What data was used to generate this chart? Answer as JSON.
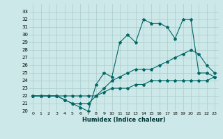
{
  "xlabel": "Humidex (Indice chaleur)",
  "bg_color": "#cce8e8",
  "grid_color": "#aacccc",
  "line_color": "#006666",
  "xlim": [
    0,
    23
  ],
  "ylim": [
    20,
    34
  ],
  "xticks": [
    0,
    1,
    2,
    3,
    4,
    5,
    6,
    7,
    8,
    9,
    10,
    11,
    12,
    13,
    14,
    15,
    16,
    17,
    18,
    19,
    20,
    21,
    22,
    23
  ],
  "yticks": [
    20,
    21,
    22,
    23,
    24,
    25,
    26,
    27,
    28,
    29,
    30,
    31,
    32,
    33
  ],
  "series": [
    {
      "x": [
        0,
        1,
        2,
        3,
        4,
        5,
        6,
        7,
        8,
        9,
        10,
        11,
        12,
        13,
        14,
        15,
        16,
        17,
        18,
        19,
        20,
        21,
        22,
        23
      ],
      "y": [
        22,
        22,
        22,
        22,
        22,
        22,
        22,
        22,
        22,
        22.5,
        23,
        23,
        23,
        23.5,
        23.5,
        24,
        24,
        24,
        24,
        24,
        24,
        24,
        24,
        24.5
      ]
    },
    {
      "x": [
        0,
        1,
        2,
        3,
        4,
        5,
        6,
        7,
        8,
        9,
        10,
        11,
        12,
        13,
        14,
        15,
        16,
        17,
        18,
        19,
        20,
        21,
        22,
        23
      ],
      "y": [
        22,
        22,
        22,
        22,
        21.5,
        21,
        21,
        21,
        22,
        23,
        24,
        24.5,
        25,
        25.5,
        25.5,
        25.5,
        26,
        26.5,
        27,
        27.5,
        28,
        27.5,
        26,
        25
      ]
    },
    {
      "x": [
        0,
        1,
        2,
        3,
        4,
        5,
        6,
        7,
        8,
        9,
        10,
        11,
        12,
        13,
        14,
        15,
        16,
        17,
        18,
        19,
        20,
        21,
        22,
        23
      ],
      "y": [
        22,
        22,
        22,
        22,
        21.5,
        21,
        20.5,
        20,
        23.5,
        25,
        24.5,
        29,
        30,
        29,
        32,
        31.5,
        31.5,
        31,
        29.5,
        32,
        32,
        25,
        25,
        24.5
      ]
    }
  ]
}
